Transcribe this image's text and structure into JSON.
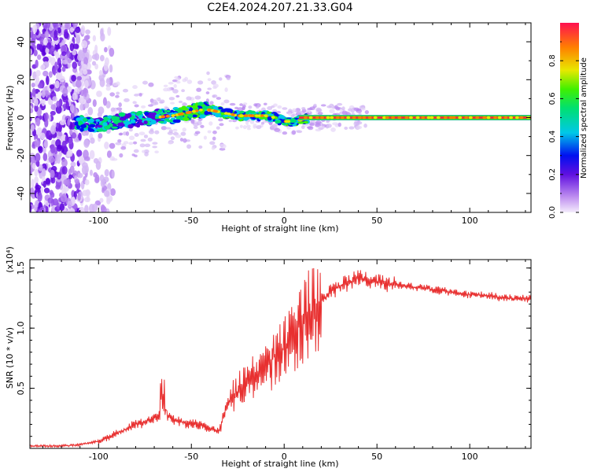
{
  "title": "C2E4.2024.207.21.33.G04",
  "chart_data": [
    {
      "type": "heatmap",
      "xlabel": "Height of straight line (km)",
      "ylabel": "Frequency (Hz)",
      "xlim": [
        -137,
        133
      ],
      "ylim": [
        -50,
        50
      ],
      "xticks": [
        -100,
        -50,
        0,
        50,
        100
      ],
      "xtick_labels": [
        "-100",
        "-50",
        "0",
        "50",
        "100"
      ],
      "yticks": [
        -40,
        -20,
        0,
        20,
        40
      ],
      "ytick_labels": [
        "-40",
        "-20",
        "0",
        "20",
        "40"
      ],
      "colorbar": {
        "label": "Normalized spectral amplitude",
        "range": [
          0,
          1
        ],
        "ticks": [
          0.0,
          0.2,
          0.4,
          0.6,
          0.8
        ],
        "tick_labels": [
          "0.0",
          "0.2",
          "0.4",
          "0.6",
          "0.8"
        ],
        "colormap": [
          "#e8d8f8",
          "#b070f0",
          "#6010e0",
          "#0000f0",
          "#00c8e8",
          "#00e070",
          "#40f000",
          "#e8e800",
          "#ff8000",
          "#ff2040"
        ]
      },
      "ridge": {
        "x": [
          -110,
          -100,
          -90,
          -80,
          -70,
          -60,
          -50,
          -45,
          -40,
          -35,
          -30,
          -25,
          -20,
          -15,
          -10,
          -5,
          0,
          5,
          10,
          15,
          20,
          50,
          100,
          133
        ],
        "frequency": [
          -3,
          -4,
          -2,
          -1,
          0,
          1,
          3,
          4,
          4,
          3,
          2,
          1,
          1,
          1,
          1,
          0,
          -2,
          -2,
          -1,
          0,
          0,
          0,
          0,
          0
        ]
      },
      "grid": false
    },
    {
      "type": "line",
      "xlabel": "Height of straight line (km)",
      "ylabel": "SNR (10 * v/v)",
      "yscale_label": "(x10⁴)",
      "xlim": [
        -137,
        133
      ],
      "ylim": [
        0,
        1.57
      ],
      "xticks": [
        -100,
        -50,
        0,
        50,
        100
      ],
      "xtick_labels": [
        "-100",
        "-50",
        "0",
        "50",
        "100"
      ],
      "yticks": [
        0.5,
        1.0,
        1.5
      ],
      "ytick_labels": [
        "0.5",
        "1.0",
        "1.5"
      ],
      "series_color": "#e83030",
      "x": [
        -137,
        -120,
        -110,
        -100,
        -95,
        -90,
        -85,
        -80,
        -75,
        -70,
        -65,
        -60,
        -55,
        -50,
        -45,
        -40,
        -35,
        -30,
        -25,
        -20,
        -15,
        -10,
        -5,
        0,
        5,
        10,
        15,
        20,
        25,
        30,
        35,
        40,
        45,
        50,
        60,
        70,
        80,
        90,
        100,
        110,
        120,
        133
      ],
      "y": [
        0.02,
        0.02,
        0.03,
        0.06,
        0.09,
        0.13,
        0.16,
        0.2,
        0.22,
        0.25,
        0.27,
        0.25,
        0.22,
        0.2,
        0.2,
        0.16,
        0.14,
        0.38,
        0.48,
        0.55,
        0.58,
        0.67,
        0.77,
        0.83,
        0.95,
        1.05,
        1.15,
        1.22,
        1.3,
        1.35,
        1.38,
        1.42,
        1.4,
        1.38,
        1.36,
        1.34,
        1.32,
        1.3,
        1.28,
        1.27,
        1.25,
        1.24
      ],
      "grid": false
    }
  ]
}
